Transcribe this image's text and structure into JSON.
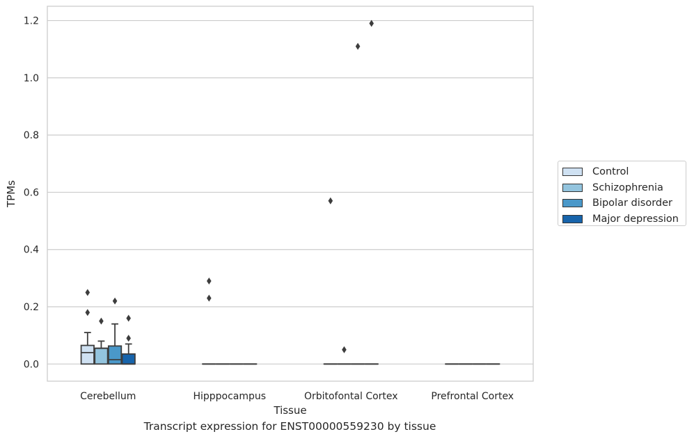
{
  "chart_data": {
    "type": "box",
    "title": "Transcript expression for ENST00000559230 by tissue",
    "xlabel": "Tissue",
    "ylabel": "TPMs",
    "ylim": [
      -0.06,
      1.25
    ],
    "yticks": [
      "0.0",
      "0.2",
      "0.4",
      "0.6",
      "0.8",
      "1.0",
      "1.2"
    ],
    "grid": "horizontal",
    "legend_position": "right",
    "categories": [
      "Cerebellum",
      "Hipppocampus",
      "Orbitofontal Cortex",
      "Prefrontal Cortex"
    ],
    "series": [
      {
        "name": "Control",
        "color": "#cfe1f2",
        "boxes": [
          {
            "q1": 0.0,
            "median": 0.04,
            "q3": 0.065,
            "whisker_low": 0.0,
            "whisker_high": 0.11,
            "outliers": [
              0.18,
              0.25
            ]
          },
          {
            "q1": 0.0,
            "median": 0.0,
            "q3": 0.0,
            "whisker_low": 0.0,
            "whisker_high": 0.0,
            "outliers": [
              0.23,
              0.29
            ]
          },
          {
            "q1": 0.0,
            "median": 0.0,
            "q3": 0.0,
            "whisker_low": 0.0,
            "whisker_high": 0.0,
            "outliers": [
              0.57
            ]
          },
          {
            "q1": 0.0,
            "median": 0.0,
            "q3": 0.0,
            "whisker_low": 0.0,
            "whisker_high": 0.0,
            "outliers": []
          }
        ]
      },
      {
        "name": "Schizophrenia",
        "color": "#93c4de",
        "boxes": [
          {
            "q1": 0.0,
            "median": 0.055,
            "q3": 0.055,
            "whisker_low": 0.0,
            "whisker_high": 0.08,
            "outliers": [
              0.15
            ]
          },
          {
            "q1": 0.0,
            "median": 0.0,
            "q3": 0.0,
            "whisker_low": 0.0,
            "whisker_high": 0.0,
            "outliers": []
          },
          {
            "q1": 0.0,
            "median": 0.0,
            "q3": 0.0,
            "whisker_low": 0.0,
            "whisker_high": 0.0,
            "outliers": [
              0.05
            ]
          },
          {
            "q1": 0.0,
            "median": 0.0,
            "q3": 0.0,
            "whisker_low": 0.0,
            "whisker_high": 0.0,
            "outliers": []
          }
        ]
      },
      {
        "name": "Bipolar disorder",
        "color": "#4a98c9",
        "boxes": [
          {
            "q1": 0.0,
            "median": 0.015,
            "q3": 0.063,
            "whisker_low": 0.0,
            "whisker_high": 0.14,
            "outliers": [
              0.22
            ]
          },
          {
            "q1": 0.0,
            "median": 0.0,
            "q3": 0.0,
            "whisker_low": 0.0,
            "whisker_high": 0.0,
            "outliers": []
          },
          {
            "q1": 0.0,
            "median": 0.0,
            "q3": 0.0,
            "whisker_low": 0.0,
            "whisker_high": 0.0,
            "outliers": [
              1.11
            ]
          },
          {
            "q1": 0.0,
            "median": 0.0,
            "q3": 0.0,
            "whisker_low": 0.0,
            "whisker_high": 0.0,
            "outliers": []
          }
        ]
      },
      {
        "name": "Major depression",
        "color": "#1764ab",
        "boxes": [
          {
            "q1": 0.0,
            "median": 0.0,
            "q3": 0.035,
            "whisker_low": 0.0,
            "whisker_high": 0.07,
            "outliers": [
              0.09,
              0.16
            ]
          },
          {
            "q1": 0.0,
            "median": 0.0,
            "q3": 0.0,
            "whisker_low": 0.0,
            "whisker_high": 0.0,
            "outliers": []
          },
          {
            "q1": 0.0,
            "median": 0.0,
            "q3": 0.0,
            "whisker_low": 0.0,
            "whisker_high": 0.0,
            "outliers": [
              1.19
            ]
          },
          {
            "q1": 0.0,
            "median": 0.0,
            "q3": 0.0,
            "whisker_low": 0.0,
            "whisker_high": 0.0,
            "outliers": []
          }
        ]
      }
    ]
  }
}
